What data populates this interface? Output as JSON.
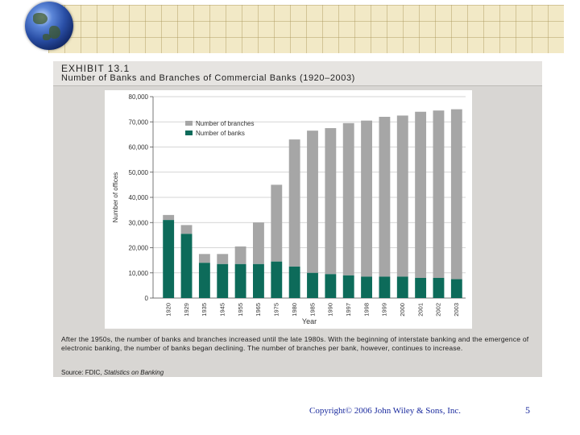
{
  "exhibit": {
    "label": "EXHIBIT 13.1",
    "title": "Number of Banks and Branches of Commercial Banks (1920–2003)",
    "caption": "After the 1950s, the number of banks and branches increased until the late 1980s. With the beginning of interstate banking and the emergence of electronic banking, the number of banks began declining. The number of branches per bank, however, continues to increase.",
    "source_prefix": "Source: FDIC, ",
    "source_title": "Statistics on Banking"
  },
  "footer": {
    "copyright": "Copyright© 2006 John Wiley & Sons, Inc.",
    "page_number": "5"
  },
  "colors": {
    "branches": "#a6a6a6",
    "banks": "#0d6b5a",
    "panel": "#d8d6d3"
  },
  "chart_data": {
    "type": "bar",
    "stacked": true,
    "categories": [
      "1920",
      "1929",
      "1935",
      "1945",
      "1955",
      "1965",
      "1975",
      "1980",
      "1985",
      "1990",
      "1997",
      "1998",
      "1999",
      "2000",
      "2001",
      "2002",
      "2003"
    ],
    "series": [
      {
        "name": "Number of branches",
        "values": [
          2000,
          3500,
          3500,
          4000,
          7000,
          16500,
          30500,
          50500,
          56500,
          58000,
          60500,
          62000,
          63500,
          64000,
          66000,
          66500,
          67500
        ]
      },
      {
        "name": "Number of banks",
        "values": [
          31000,
          25500,
          14000,
          13500,
          13500,
          13500,
          14500,
          12500,
          10000,
          9500,
          9000,
          8500,
          8500,
          8500,
          8000,
          8000,
          7500
        ]
      }
    ],
    "total_values": [
      33000,
      29000,
      17500,
      17500,
      20500,
      30000,
      45000,
      63000,
      66500,
      67500,
      69500,
      70500,
      72000,
      72500,
      74000,
      74500,
      75000
    ],
    "ylim": [
      0,
      80000
    ],
    "yticks": [
      0,
      10000,
      20000,
      30000,
      40000,
      50000,
      60000,
      70000,
      80000
    ],
    "ytick_labels": [
      "0",
      "10,000",
      "20,000",
      "30,000",
      "40,000",
      "50,000",
      "60,000",
      "70,000",
      "80,000"
    ],
    "ylabel": "Number of offices",
    "xlabel": "Year",
    "legend_position": "top-left inside",
    "legend": [
      "Number of branches",
      "Number of banks"
    ]
  }
}
